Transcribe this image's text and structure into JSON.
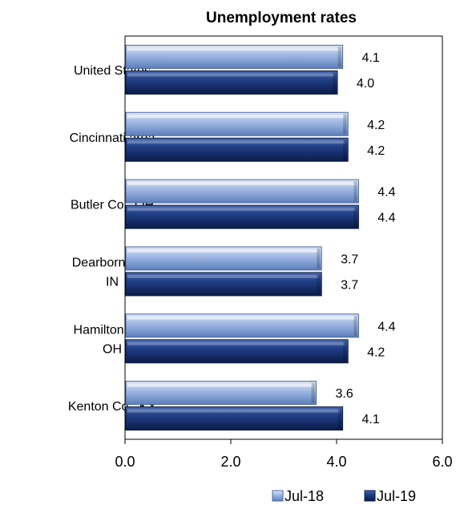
{
  "chart_data": {
    "type": "bar",
    "orientation": "horizontal",
    "title": "Unemployment rates",
    "categories": [
      "United States",
      "Cincinnati area",
      "Butler Co., OH",
      "Dearborn Co., IN",
      "Hamilton Co., OH",
      "Kenton Co., KY"
    ],
    "category_lines": [
      [
        "United States"
      ],
      [
        "Cincinnati area"
      ],
      [
        "Butler Co., OH"
      ],
      [
        "Dearborn Co.,",
        "IN"
      ],
      [
        "Hamilton Co.,",
        "OH"
      ],
      [
        "Kenton Co., KY"
      ]
    ],
    "series": [
      {
        "name": "Jul-18",
        "values": [
          4.1,
          4.2,
          4.4,
          3.7,
          4.4,
          3.6
        ],
        "value_labels": [
          "4.1",
          "4.2",
          "4.4",
          "3.7",
          "4.4",
          "3.6"
        ],
        "color": "#8eaadb"
      },
      {
        "name": "Jul-19",
        "values": [
          4.0,
          4.2,
          4.4,
          3.7,
          4.2,
          4.1
        ],
        "value_labels": [
          "4.0",
          "4.2",
          "4.4",
          "3.7",
          "4.2",
          "4.1"
        ],
        "color": "#1f3a78"
      }
    ],
    "xlim": [
      0,
      6
    ],
    "x_ticks": [
      "0.0",
      "2.0",
      "4.0",
      "6.0"
    ],
    "xlabel": "",
    "ylabel": "",
    "grid": false,
    "legend_position": "bottom"
  }
}
